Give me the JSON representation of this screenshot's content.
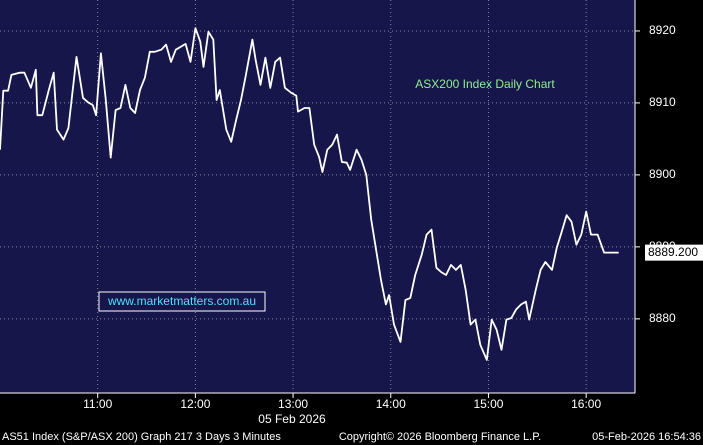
{
  "chart_data": {
    "type": "line",
    "title": "ASX200 Index Daily Chart",
    "watermark": "www.marketmatters.com.au",
    "date_label": "05 Feb 2026",
    "footer": {
      "left": "AS51 Index (S&P/ASX 200) Graph 217 3 Days 3 Minutes",
      "center": "Copyright© 2026 Bloomberg Finance L.P.",
      "right": "05-Feb-2026 16:54:36"
    },
    "xlim": [
      600,
      990
    ],
    "xticks": [
      {
        "value": 660,
        "label": "11:00"
      },
      {
        "value": 720,
        "label": "12:00"
      },
      {
        "value": 780,
        "label": "13:00"
      },
      {
        "value": 840,
        "label": "14:00"
      },
      {
        "value": 900,
        "label": "15:00"
      },
      {
        "value": 960,
        "label": "16:00"
      }
    ],
    "ylim": [
      8869.7,
      8924.3
    ],
    "yticks": [
      8880,
      8890,
      8900,
      8910,
      8920
    ],
    "last_price": {
      "value": 8889.2,
      "label": "8889.200"
    },
    "grid": true,
    "x": [
      600,
      602,
      605,
      607,
      612,
      615,
      619,
      622,
      623,
      626,
      630,
      633,
      635,
      639,
      642,
      644,
      647,
      651,
      654,
      657,
      659,
      662,
      665,
      668,
      671,
      674,
      677,
      680,
      683,
      686,
      689,
      692,
      695,
      699,
      702,
      705,
      708,
      711,
      714,
      717,
      720,
      723,
      725,
      728,
      731,
      733,
      735,
      739,
      742,
      745,
      748,
      751,
      755,
      757,
      760,
      763,
      766,
      769,
      772,
      775,
      779,
      782,
      783,
      787,
      790,
      793,
      796,
      798,
      801,
      804,
      807,
      810,
      813,
      815,
      819,
      822,
      825,
      828,
      831,
      834,
      837,
      839,
      842,
      846,
      849,
      852,
      855,
      859,
      862,
      865,
      868,
      871,
      874,
      877,
      880,
      883,
      886,
      889,
      892,
      895,
      899,
      902,
      905,
      908,
      911,
      914,
      917,
      920,
      923,
      925,
      929,
      932,
      935,
      939,
      942,
      945,
      948,
      951,
      954,
      957,
      960,
      963,
      967,
      971,
      980
    ],
    "series": [
      {
        "color": "#ffffff",
        "values": [
          8903.5,
          8911.7,
          8911.7,
          8913.9,
          8914.2,
          8914.2,
          8912.1,
          8914.6,
          8908.3,
          8908.3,
          8911.8,
          8914.2,
          8906.3,
          8904.9,
          8906.5,
          8910.4,
          8916.4,
          8910.7,
          8910.1,
          8909.7,
          8908.3,
          8916.9,
          8910.4,
          8902.4,
          8909.0,
          8909.3,
          8912.5,
          8909.3,
          8908.6,
          8911.8,
          8913.5,
          8917.1,
          8917.1,
          8917.4,
          8918.1,
          8915.7,
          8917.4,
          8917.8,
          8918.2,
          8915.7,
          8920.4,
          8918.5,
          8915.0,
          8919.9,
          8918.8,
          8910.4,
          8911.8,
          8906.3,
          8904.6,
          8907.6,
          8910.4,
          8913.9,
          8918.8,
          8916.0,
          8912.5,
          8916.3,
          8912.1,
          8915.7,
          8916.3,
          8912.1,
          8911.4,
          8911.0,
          8908.8,
          8909.3,
          8909.3,
          8904.2,
          8902.5,
          8900.4,
          8903.5,
          8904.2,
          8905.6,
          8901.8,
          8901.7,
          8900.7,
          8903.5,
          8902.1,
          8900.0,
          8893.8,
          8889.6,
          8885.4,
          8882.0,
          8883.3,
          8879.2,
          8876.8,
          8882.6,
          8882.9,
          8886.1,
          8888.9,
          8891.7,
          8892.4,
          8887.1,
          8886.5,
          8886.1,
          8887.5,
          8886.8,
          8887.5,
          8884.0,
          8879.2,
          8879.9,
          8876.4,
          8874.3,
          8879.9,
          8878.5,
          8875.7,
          8879.9,
          8880.1,
          8881.3,
          8882.0,
          8882.4,
          8879.9,
          8884.0,
          8886.8,
          8887.9,
          8886.8,
          8889.9,
          8892.1,
          8894.4,
          8893.5,
          8890.3,
          8891.7,
          8894.9,
          8891.7,
          8891.7,
          8889.2,
          8889.2
        ]
      }
    ]
  }
}
